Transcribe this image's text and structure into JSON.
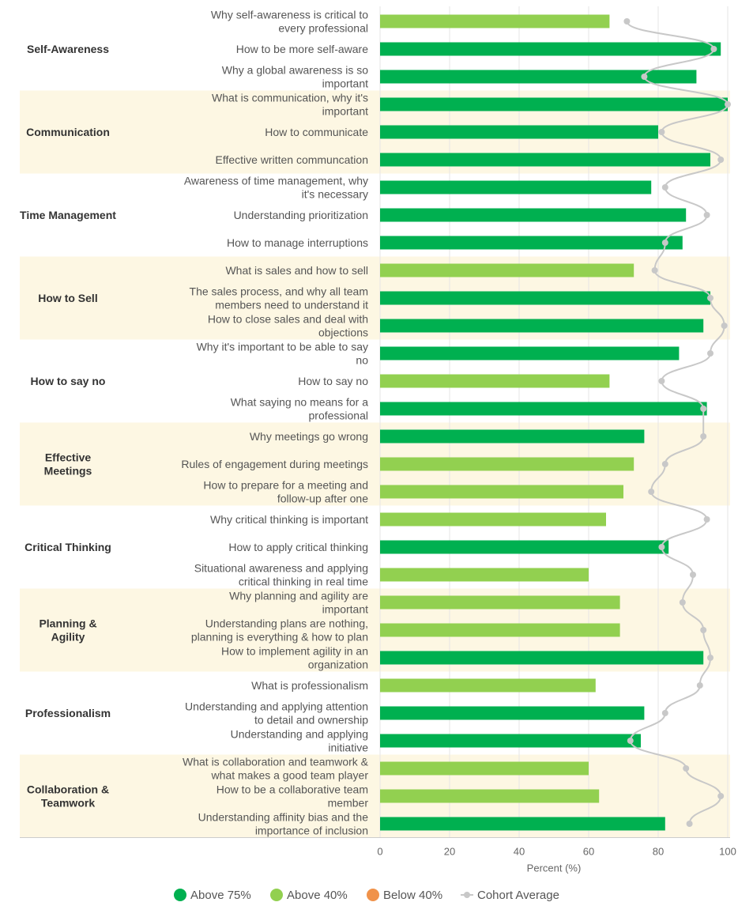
{
  "chart_data": {
    "type": "bar",
    "orientation": "horizontal",
    "xlabel": "Percent (%)",
    "xlim": [
      0,
      100
    ],
    "xticks": [
      0,
      20,
      40,
      60,
      80,
      100
    ],
    "grid": true,
    "legend_position": "bottom",
    "legend": [
      {
        "label": "Above 75%",
        "color": "#00b050",
        "marker": "dot"
      },
      {
        "label": "Above 40%",
        "color": "#92d050",
        "marker": "dot"
      },
      {
        "label": "Below 40%",
        "color": "#f0924a",
        "marker": "dot"
      },
      {
        "label": "Cohort Average",
        "color": "#c8c8c8",
        "marker": "line-dot"
      }
    ],
    "colors": {
      "above75": "#00b050",
      "above40": "#92d050",
      "below40": "#f0924a",
      "cohort": "#c8c8c8",
      "band": "#fdf7e3"
    },
    "groups": [
      {
        "name": "Self-Awareness",
        "shaded": false,
        "items": [
          {
            "label": "Why self-awareness is critical to every professional",
            "value": 66,
            "cohort": 71,
            "tier": "above40"
          },
          {
            "label": "How to be more self-aware",
            "value": 98,
            "cohort": 96,
            "tier": "above75"
          },
          {
            "label": "Why a global awareness is so important",
            "value": 91,
            "cohort": 76,
            "tier": "above75"
          }
        ]
      },
      {
        "name": "Communication",
        "shaded": true,
        "items": [
          {
            "label": "What is communication, why it's important",
            "value": 100,
            "cohort": 100,
            "tier": "above75"
          },
          {
            "label": "How to communicate",
            "value": 80,
            "cohort": 81,
            "tier": "above75"
          },
          {
            "label": "Effective written communcation",
            "value": 95,
            "cohort": 98,
            "tier": "above75"
          }
        ]
      },
      {
        "name": "Time Management",
        "shaded": false,
        "items": [
          {
            "label": "Awareness of time management, why it's necessary",
            "value": 78,
            "cohort": 82,
            "tier": "above75"
          },
          {
            "label": "Understanding prioritization",
            "value": 88,
            "cohort": 94,
            "tier": "above75"
          },
          {
            "label": "How to manage interruptions",
            "value": 87,
            "cohort": 82,
            "tier": "above75"
          }
        ]
      },
      {
        "name": "How to Sell",
        "shaded": true,
        "items": [
          {
            "label": "What is sales and how to sell",
            "value": 73,
            "cohort": 79,
            "tier": "above40"
          },
          {
            "label": "The sales process, and why all team members need to understand it",
            "value": 95,
            "cohort": 95,
            "tier": "above75"
          },
          {
            "label": "How to close sales and deal with objections",
            "value": 93,
            "cohort": 99,
            "tier": "above75"
          }
        ]
      },
      {
        "name": "How to say no",
        "shaded": false,
        "items": [
          {
            "label": "Why it's important to be able to say no",
            "value": 86,
            "cohort": 95,
            "tier": "above75"
          },
          {
            "label": "How to say no",
            "value": 66,
            "cohort": 81,
            "tier": "above40"
          },
          {
            "label": "What saying no means for a professional",
            "value": 94,
            "cohort": 93,
            "tier": "above75"
          }
        ]
      },
      {
        "name": "Effective Meetings",
        "shaded": true,
        "items": [
          {
            "label": "Why meetings go wrong",
            "value": 76,
            "cohort": 93,
            "tier": "above75"
          },
          {
            "label": "Rules of engagement during meetings",
            "value": 73,
            "cohort": 82,
            "tier": "above40"
          },
          {
            "label": "How to prepare for a meeting and follow-up after one",
            "value": 70,
            "cohort": 78,
            "tier": "above40"
          }
        ]
      },
      {
        "name": "Critical Thinking",
        "shaded": false,
        "items": [
          {
            "label": "Why critical thinking is important",
            "value": 65,
            "cohort": 94,
            "tier": "above40"
          },
          {
            "label": "How to apply critical thinking",
            "value": 83,
            "cohort": 81,
            "tier": "above75"
          },
          {
            "label": "Situational awareness and applying critical thinking in real time",
            "value": 60,
            "cohort": 90,
            "tier": "above40"
          }
        ]
      },
      {
        "name": "Planning & Agility",
        "shaded": true,
        "items": [
          {
            "label": "Why planning and agility are important",
            "value": 69,
            "cohort": 87,
            "tier": "above40"
          },
          {
            "label": "Understanding plans are nothing, planning is everything & how to plan",
            "value": 69,
            "cohort": 93,
            "tier": "above40"
          },
          {
            "label": "How to implement agility in an organization",
            "value": 93,
            "cohort": 95,
            "tier": "above75"
          }
        ]
      },
      {
        "name": "Professionalism",
        "shaded": false,
        "items": [
          {
            "label": "What is professionalism",
            "value": 62,
            "cohort": 92,
            "tier": "above40"
          },
          {
            "label": "Understanding and applying attention to detail and ownership",
            "value": 76,
            "cohort": 82,
            "tier": "above75"
          },
          {
            "label": "Understanding and applying initiative",
            "value": 75,
            "cohort": 72,
            "tier": "above75"
          }
        ]
      },
      {
        "name": "Collaboration & Teamwork",
        "shaded": true,
        "items": [
          {
            "label": "What is collaboration and teamwork & what makes a good team player",
            "value": 60,
            "cohort": 88,
            "tier": "above40"
          },
          {
            "label": "How to be a collaborative team member",
            "value": 63,
            "cohort": 98,
            "tier": "above40"
          },
          {
            "label": "Understanding affinity bias and the importance of inclusion",
            "value": 82,
            "cohort": 89,
            "tier": "above75"
          }
        ]
      }
    ]
  }
}
